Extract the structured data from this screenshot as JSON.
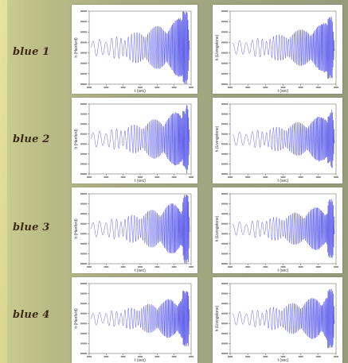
{
  "rows": [
    {
      "label": "blue 1"
    },
    {
      "label": "blue 2"
    },
    {
      "label": "blue 3"
    },
    {
      "label": "blue 4"
    }
  ],
  "panels": {
    "left_ylabel": "h (Hanford)",
    "right_ylabel": "h (Livingstone)",
    "xlabel": "t (sec)"
  },
  "colors": {
    "signal": "#3c3ce6",
    "axes": "#555555",
    "panel_bg": "#ffffff"
  }
}
